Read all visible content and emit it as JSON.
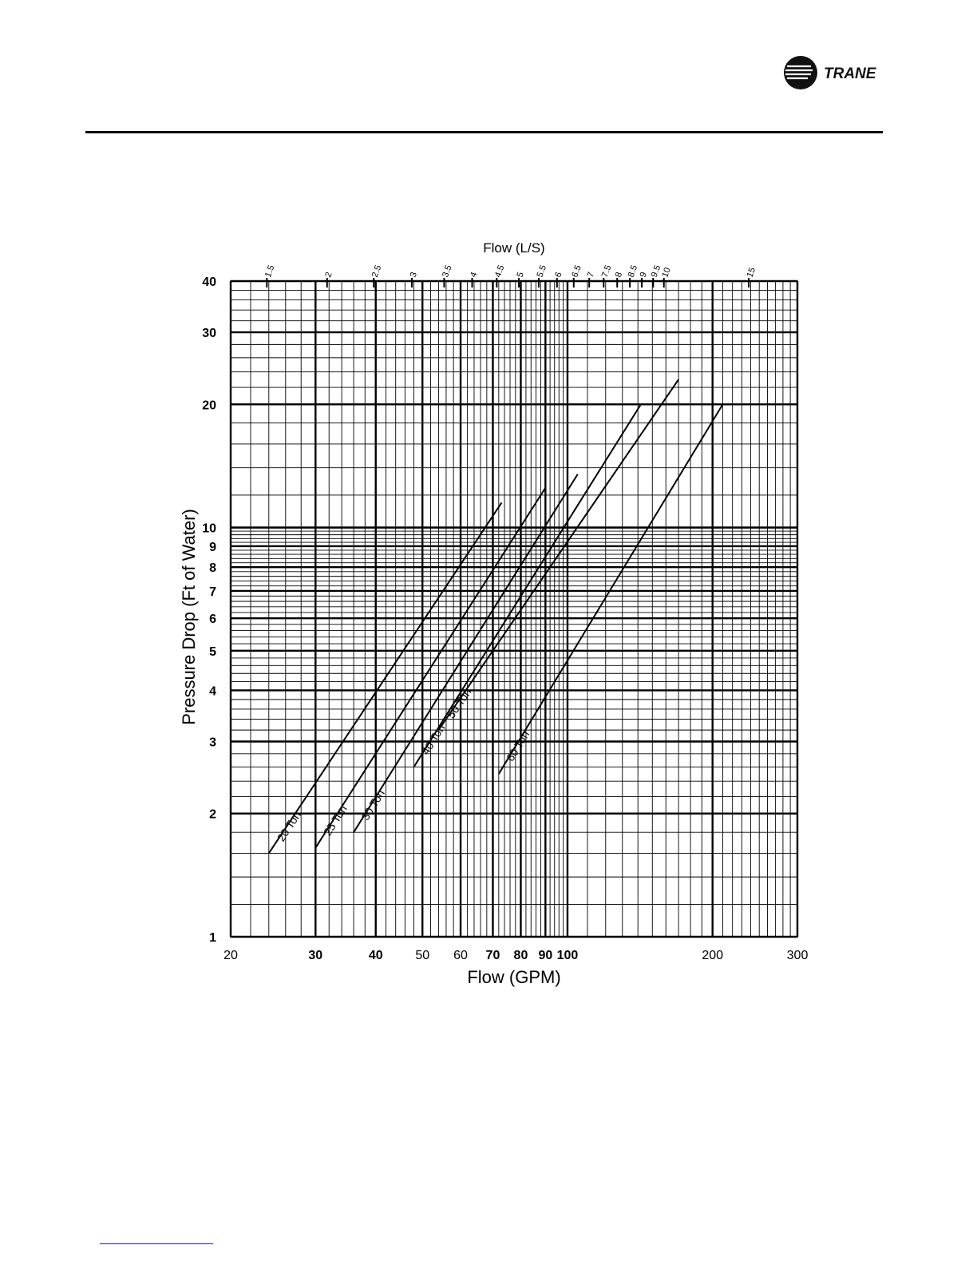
{
  "header": {
    "brand": "TRANE",
    "logo_icon": "trane-logo-icon",
    "rule_color": "#000000"
  },
  "chart_data": {
    "type": "line",
    "xscale": "log",
    "yscale": "log",
    "xlabel": "Flow (GPM)",
    "ylabel": "Pressure Drop (Ft of Water)",
    "x2label": "Flow (L/S)",
    "xlim": [
      20,
      300
    ],
    "ylim": [
      1,
      40
    ],
    "xticks": [
      {
        "value": 20,
        "label": "20"
      },
      {
        "value": 30,
        "label": "30"
      },
      {
        "value": 40,
        "label": "40"
      },
      {
        "value": 50,
        "label": "50"
      },
      {
        "value": 60,
        "label": "60"
      },
      {
        "value": 70,
        "label": "70"
      },
      {
        "value": 80,
        "label": "80"
      },
      {
        "value": 90,
        "label": "90"
      },
      {
        "value": 100,
        "label": "100"
      },
      {
        "value": 200,
        "label": "200"
      },
      {
        "value": 300,
        "label": "300"
      }
    ],
    "yticks": [
      {
        "value": 1,
        "label": "1"
      },
      {
        "value": 2,
        "label": "2"
      },
      {
        "value": 3,
        "label": "3"
      },
      {
        "value": 4,
        "label": "4"
      },
      {
        "value": 5,
        "label": "5"
      },
      {
        "value": 6,
        "label": "6"
      },
      {
        "value": 7,
        "label": "7"
      },
      {
        "value": 8,
        "label": "8"
      },
      {
        "value": 9,
        "label": "9"
      },
      {
        "value": 10,
        "label": "10"
      },
      {
        "value": 20,
        "label": "20"
      },
      {
        "value": 30,
        "label": "30"
      },
      {
        "value": 40,
        "label": "40"
      }
    ],
    "x2ticks": [
      {
        "value": 1.5,
        "label": "1.5"
      },
      {
        "value": 2,
        "label": "2"
      },
      {
        "value": 2.5,
        "label": "2.5"
      },
      {
        "value": 3,
        "label": "3"
      },
      {
        "value": 3.5,
        "label": "3.5"
      },
      {
        "value": 4,
        "label": "4"
      },
      {
        "value": 4.5,
        "label": "4.5"
      },
      {
        "value": 5,
        "label": "5"
      },
      {
        "value": 5.5,
        "label": "5.5"
      },
      {
        "value": 6,
        "label": "6"
      },
      {
        "value": 6.5,
        "label": "6.5"
      },
      {
        "value": 7,
        "label": "7"
      },
      {
        "value": 7.5,
        "label": "7.5"
      },
      {
        "value": 8,
        "label": "8"
      },
      {
        "value": 8.5,
        "label": "8.5"
      },
      {
        "value": 9,
        "label": "9"
      },
      {
        "value": 9.5,
        "label": "9.5"
      },
      {
        "value": 10,
        "label": "10"
      },
      {
        "value": 15,
        "label": "15"
      }
    ],
    "grid": true,
    "series": [
      {
        "name": "20 Ton",
        "x": [
          24,
          73
        ],
        "y": [
          1.6,
          11.5
        ]
      },
      {
        "name": "25 Ton",
        "x": [
          30,
          90
        ],
        "y": [
          1.65,
          12.5
        ]
      },
      {
        "name": "30 Ton",
        "x": [
          36,
          105
        ],
        "y": [
          1.8,
          13.5
        ]
      },
      {
        "name": "40 Ton",
        "x": [
          48,
          142
        ],
        "y": [
          2.6,
          20
        ]
      },
      {
        "name": "50 Ton",
        "x": [
          54,
          170
        ],
        "y": [
          3.2,
          23
        ]
      },
      {
        "name": "60 Ton",
        "x": [
          72,
          210
        ],
        "y": [
          2.5,
          20
        ]
      }
    ]
  }
}
